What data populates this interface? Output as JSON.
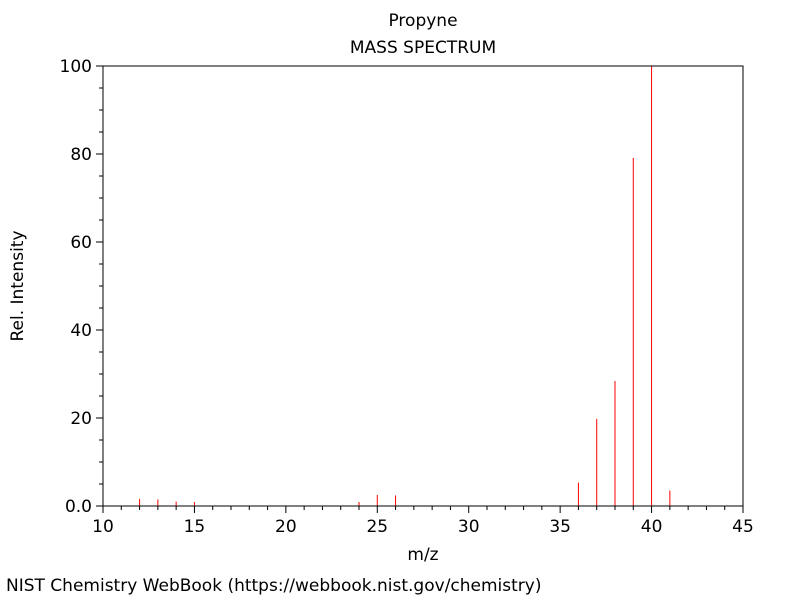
{
  "chart_data": {
    "type": "bar",
    "title": "Propyne",
    "subtitle": "MASS SPECTRUM",
    "xlabel": "m/z",
    "ylabel": "Rel. Intensity",
    "xlim": [
      10,
      45
    ],
    "ylim": [
      0,
      100
    ],
    "x_ticks": [
      "10",
      "15",
      "20",
      "25",
      "30",
      "35",
      "40",
      "45"
    ],
    "y_ticks": [
      "0.0",
      "20",
      "40",
      "60",
      "80",
      "100"
    ],
    "grid": false,
    "series_color": "#ff0000",
    "points": [
      {
        "x": 12,
        "y": 1.6
      },
      {
        "x": 13,
        "y": 1.5
      },
      {
        "x": 14,
        "y": 1.0
      },
      {
        "x": 15,
        "y": 0.9
      },
      {
        "x": 24,
        "y": 0.9
      },
      {
        "x": 25,
        "y": 2.5
      },
      {
        "x": 26,
        "y": 2.4
      },
      {
        "x": 36,
        "y": 5.3
      },
      {
        "x": 37,
        "y": 19.8
      },
      {
        "x": 38,
        "y": 28.4
      },
      {
        "x": 39,
        "y": 79.1
      },
      {
        "x": 40,
        "y": 100
      },
      {
        "x": 41,
        "y": 3.5
      }
    ]
  },
  "footer": "NIST Chemistry WebBook (https://webbook.nist.gov/chemistry)"
}
